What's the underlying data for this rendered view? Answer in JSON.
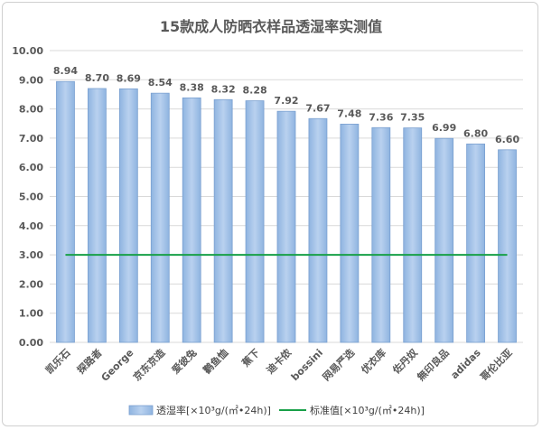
{
  "chart_data": {
    "type": "bar",
    "title": "15款成人防晒衣样品透湿率实测值",
    "categories": [
      "凯乐石",
      "探路者",
      "George",
      "京东京造",
      "爱彼兔",
      "鹳鱼恤",
      "蕉下",
      "迪卡侬",
      "bossini",
      "网易严选",
      "优衣库",
      "佐丹奴",
      "無印良品",
      "adidas",
      "哥伦比亚"
    ],
    "series": [
      {
        "name": "透湿率[×10³g/(㎡•24h)]",
        "type": "bar",
        "color": "#9dc0e6",
        "values": [
          8.94,
          8.7,
          8.69,
          8.54,
          8.38,
          8.32,
          8.28,
          7.92,
          7.67,
          7.48,
          7.36,
          7.35,
          6.99,
          6.8,
          6.6
        ],
        "value_labels": [
          "8.94",
          "8.70",
          "8.69",
          "8.54",
          "8.38",
          "8.32",
          "8.28",
          "7.92",
          "7.67",
          "7.48",
          "7.36",
          "7.35",
          "6.99",
          "6.80",
          "6.60"
        ]
      },
      {
        "name": "标准值[×10³g/(㎡•24h)]",
        "type": "line",
        "color": "#18a048",
        "value": 3.0
      }
    ],
    "ylim": [
      0,
      10
    ],
    "yticks": [
      "0.00",
      "1.00",
      "2.00",
      "3.00",
      "4.00",
      "5.00",
      "6.00",
      "7.00",
      "8.00",
      "9.00",
      "10.00"
    ],
    "grid": true,
    "legend_position": "bottom"
  }
}
